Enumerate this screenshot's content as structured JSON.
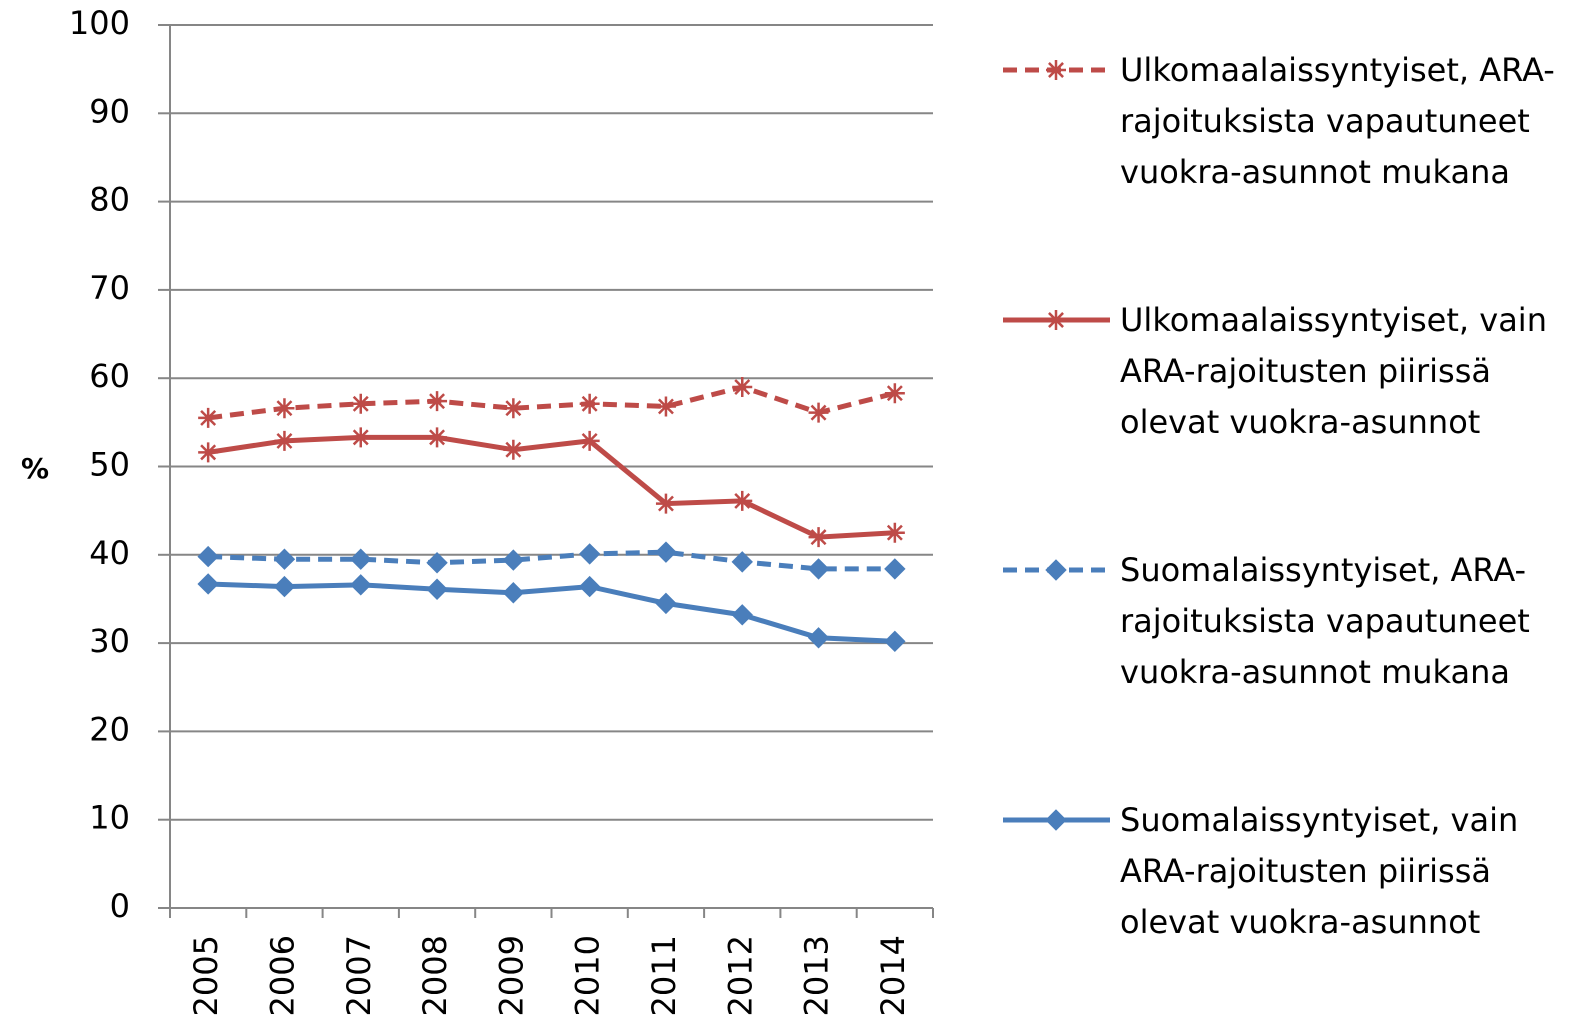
{
  "chart_data": {
    "type": "line",
    "y_label": "%",
    "categories": [
      "2005",
      "2006",
      "2007",
      "2008",
      "2009",
      "2010",
      "2011",
      "2012",
      "2013",
      "2014"
    ],
    "ylim": [
      0,
      100
    ],
    "yticks": [
      0,
      10,
      20,
      30,
      40,
      50,
      60,
      70,
      80,
      90,
      100
    ],
    "grid": true,
    "legend": "right",
    "series": [
      {
        "name": "Ulkomaalaissyntyiset, ARA-rajoituksista vapautuneet vuokra-asunnot mukana",
        "color": "#be4b48",
        "dashed": true,
        "marker": "asterisk",
        "values": [
          55.5,
          56.6,
          57.1,
          57.4,
          56.6,
          57.1,
          56.8,
          59.0,
          56.1,
          58.3
        ]
      },
      {
        "name": "Ulkomaalaissyntyiset, vain ARA-rajoitusten piirissä olevat vuokra-asunnot",
        "color": "#be4b48",
        "dashed": false,
        "marker": "asterisk",
        "values": [
          51.6,
          52.9,
          53.3,
          53.3,
          51.9,
          52.9,
          45.8,
          46.1,
          42.0,
          42.5
        ]
      },
      {
        "name": "Suomalaissyntyiset, ARA-rajoituksista vapautuneet vuokra-asunnot mukana",
        "color": "#4a7ebb",
        "dashed": true,
        "marker": "diamond",
        "values": [
          39.8,
          39.5,
          39.5,
          39.1,
          39.4,
          40.1,
          40.3,
          39.2,
          38.4,
          38.4
        ]
      },
      {
        "name": "Suomalaissyntyiset, vain ARA-rajoitusten piirissä olevat vuokra-asunnot",
        "color": "#4a7ebb",
        "dashed": false,
        "marker": "diamond",
        "values": [
          36.7,
          36.4,
          36.6,
          36.1,
          35.7,
          36.4,
          34.5,
          33.2,
          30.6,
          30.2
        ]
      }
    ]
  }
}
